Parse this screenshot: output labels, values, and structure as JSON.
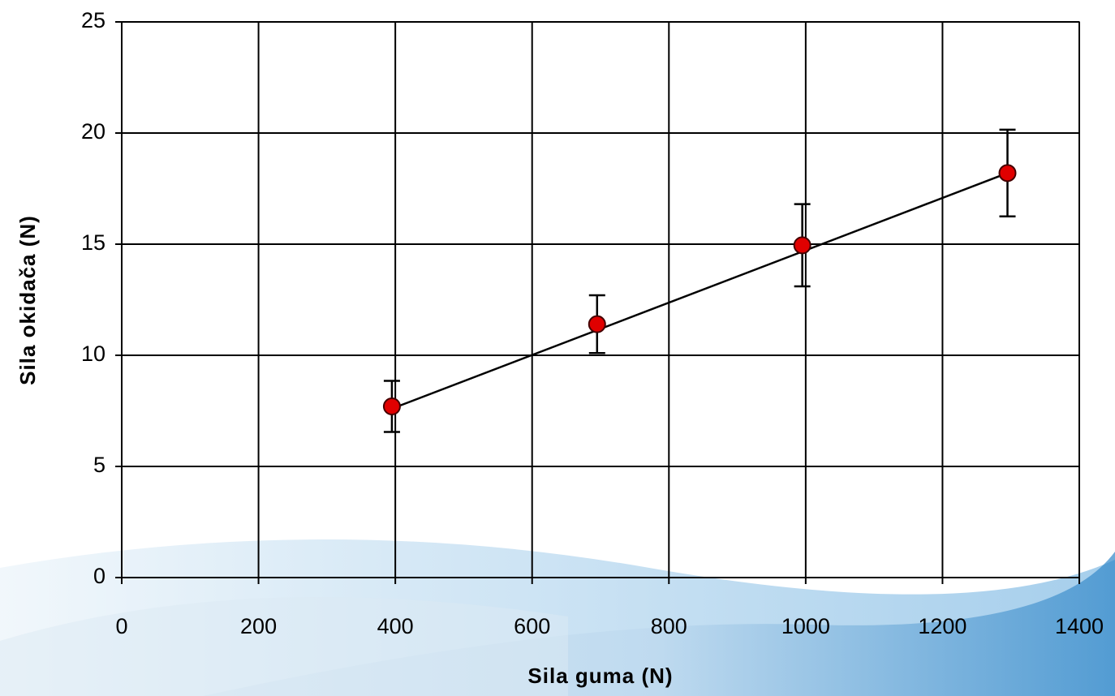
{
  "chart_data": {
    "type": "scatter",
    "xlabel": "Sila guma (N)",
    "ylabel": "Sila okidača (N)",
    "x": [
      395,
      695,
      995,
      1295
    ],
    "values": [
      7.7,
      11.4,
      14.95,
      18.2
    ],
    "errors": [
      1.15,
      1.3,
      1.85,
      1.95
    ],
    "color": "#e00000",
    "fit": {
      "x": [
        395,
        1295
      ],
      "values": [
        7.6,
        18.2
      ],
      "color": "#000000"
    },
    "xlim": [
      0,
      1400
    ],
    "xticks": [
      0,
      200,
      400,
      600,
      800,
      1000,
      1200,
      1400
    ],
    "ylim": [
      0,
      25
    ],
    "yticks": [
      0,
      5,
      10,
      15,
      20,
      25
    ],
    "grid": true
  }
}
